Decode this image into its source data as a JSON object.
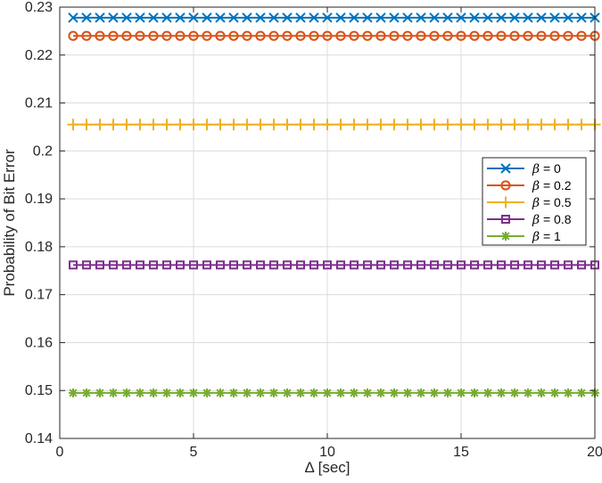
{
  "chart_data": {
    "type": "line",
    "xlabel": "Δ [sec]",
    "ylabel": "Probability of Bit Error",
    "xlim": [
      0,
      20
    ],
    "ylim": [
      0.14,
      0.23
    ],
    "xticks": [
      0,
      5,
      10,
      15,
      20
    ],
    "xtick_labels": [
      "0",
      "5",
      "10",
      "15",
      "20"
    ],
    "yticks": [
      0.14,
      0.15,
      0.16,
      0.17,
      0.18,
      0.19,
      0.2,
      0.21,
      0.22,
      0.23
    ],
    "ytick_labels": [
      "0.14",
      "0.15",
      "0.16",
      "0.17",
      "0.18",
      "0.19",
      "0.2",
      "0.21",
      "0.22",
      "0.23"
    ],
    "grid": true,
    "legend_position": "right",
    "x": [
      0.5,
      1,
      1.5,
      2,
      2.5,
      3,
      3.5,
      4,
      4.5,
      5,
      5.5,
      6,
      6.5,
      7,
      7.5,
      8,
      8.5,
      9,
      9.5,
      10,
      10.5,
      11,
      11.5,
      12,
      12.5,
      13,
      13.5,
      14,
      14.5,
      15,
      15.5,
      16,
      16.5,
      17,
      17.5,
      18,
      18.5,
      19,
      19.5,
      20
    ],
    "series": [
      {
        "name": "β = 0",
        "beta_symbol": "β",
        "beta_value": "= 0",
        "marker": "x",
        "color": "#0072BD",
        "value": 0.2278
      },
      {
        "name": "β = 0.2",
        "beta_symbol": "β",
        "beta_value": "= 0.2",
        "marker": "o",
        "color": "#D95319",
        "value": 0.224
      },
      {
        "name": "β = 0.5",
        "beta_symbol": "β",
        "beta_value": "= 0.5",
        "marker": "+",
        "color": "#EDB120",
        "value": 0.2055
      },
      {
        "name": "β = 0.8",
        "beta_symbol": "β",
        "beta_value": "= 0.8",
        "marker": "s",
        "color": "#7E2F8E",
        "value": 0.1762
      },
      {
        "name": "β = 1",
        "beta_symbol": "β",
        "beta_value": "= 1",
        "marker": "*",
        "color": "#77AC30",
        "value": 0.1495
      }
    ]
  }
}
